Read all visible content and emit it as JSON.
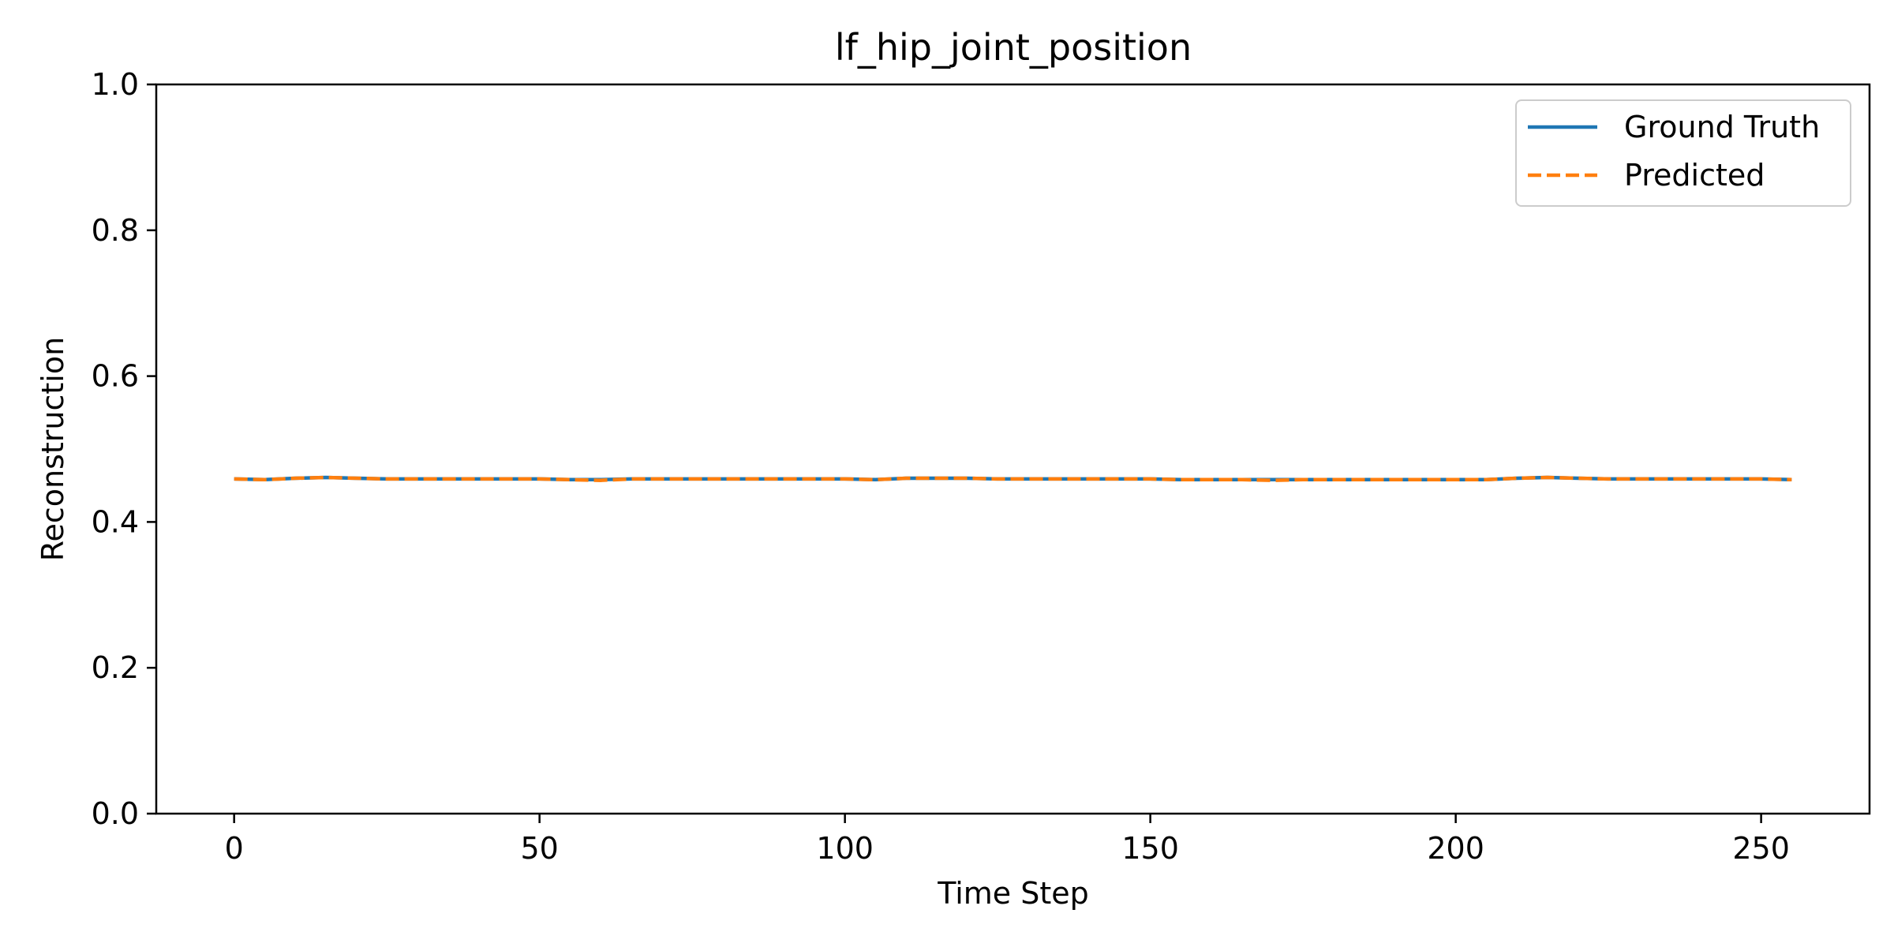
{
  "chart_data": {
    "type": "line",
    "title": "lf_hip_joint_position",
    "xlabel": "Time Step",
    "ylabel": "Reconstruction",
    "xlim": [
      -12.75,
      267.75
    ],
    "ylim": [
      0.0,
      1.0
    ],
    "xticks": [
      0,
      50,
      100,
      150,
      200,
      250
    ],
    "xtick_labels": [
      "0",
      "50",
      "100",
      "150",
      "200",
      "250"
    ],
    "yticks": [
      0.0,
      0.2,
      0.4,
      0.6,
      0.8,
      1.0
    ],
    "ytick_labels": [
      "0.0",
      "0.2",
      "0.4",
      "0.6",
      "0.8",
      "1.0"
    ],
    "grid": false,
    "legend_position": "top-right",
    "series": [
      {
        "name": "Ground Truth",
        "color": "#1f77b4",
        "style": "solid",
        "x": [
          0,
          5,
          10,
          15,
          20,
          25,
          30,
          35,
          40,
          45,
          50,
          55,
          60,
          65,
          70,
          75,
          80,
          85,
          90,
          95,
          100,
          105,
          110,
          115,
          120,
          125,
          130,
          135,
          140,
          145,
          150,
          155,
          160,
          165,
          170,
          175,
          180,
          185,
          190,
          195,
          200,
          205,
          210,
          215,
          220,
          225,
          230,
          235,
          240,
          245,
          250,
          255
        ],
        "y": [
          0.459,
          0.458,
          0.46,
          0.461,
          0.46,
          0.459,
          0.459,
          0.459,
          0.459,
          0.459,
          0.459,
          0.458,
          0.458,
          0.459,
          0.459,
          0.459,
          0.459,
          0.459,
          0.459,
          0.459,
          0.459,
          0.458,
          0.46,
          0.46,
          0.46,
          0.459,
          0.459,
          0.459,
          0.459,
          0.459,
          0.459,
          0.458,
          0.458,
          0.458,
          0.458,
          0.458,
          0.458,
          0.458,
          0.458,
          0.458,
          0.458,
          0.458,
          0.46,
          0.461,
          0.46,
          0.459,
          0.459,
          0.459,
          0.459,
          0.459,
          0.459,
          0.458
        ]
      },
      {
        "name": "Predicted",
        "color": "#ff7f0e",
        "style": "dashed",
        "x": [
          0,
          5,
          10,
          15,
          20,
          25,
          30,
          35,
          40,
          45,
          50,
          55,
          60,
          65,
          70,
          75,
          80,
          85,
          90,
          95,
          100,
          105,
          110,
          115,
          120,
          125,
          130,
          135,
          140,
          145,
          150,
          155,
          160,
          165,
          170,
          175,
          180,
          185,
          190,
          195,
          200,
          205,
          210,
          215,
          220,
          225,
          230,
          235,
          240,
          245,
          250,
          255
        ],
        "y": [
          0.459,
          0.458,
          0.46,
          0.461,
          0.46,
          0.459,
          0.459,
          0.459,
          0.459,
          0.459,
          0.459,
          0.458,
          0.457,
          0.459,
          0.459,
          0.459,
          0.459,
          0.459,
          0.459,
          0.459,
          0.459,
          0.458,
          0.46,
          0.46,
          0.46,
          0.459,
          0.459,
          0.459,
          0.459,
          0.459,
          0.459,
          0.458,
          0.458,
          0.458,
          0.457,
          0.458,
          0.458,
          0.458,
          0.458,
          0.458,
          0.458,
          0.458,
          0.46,
          0.461,
          0.46,
          0.459,
          0.459,
          0.459,
          0.459,
          0.459,
          0.459,
          0.458
        ]
      }
    ]
  }
}
